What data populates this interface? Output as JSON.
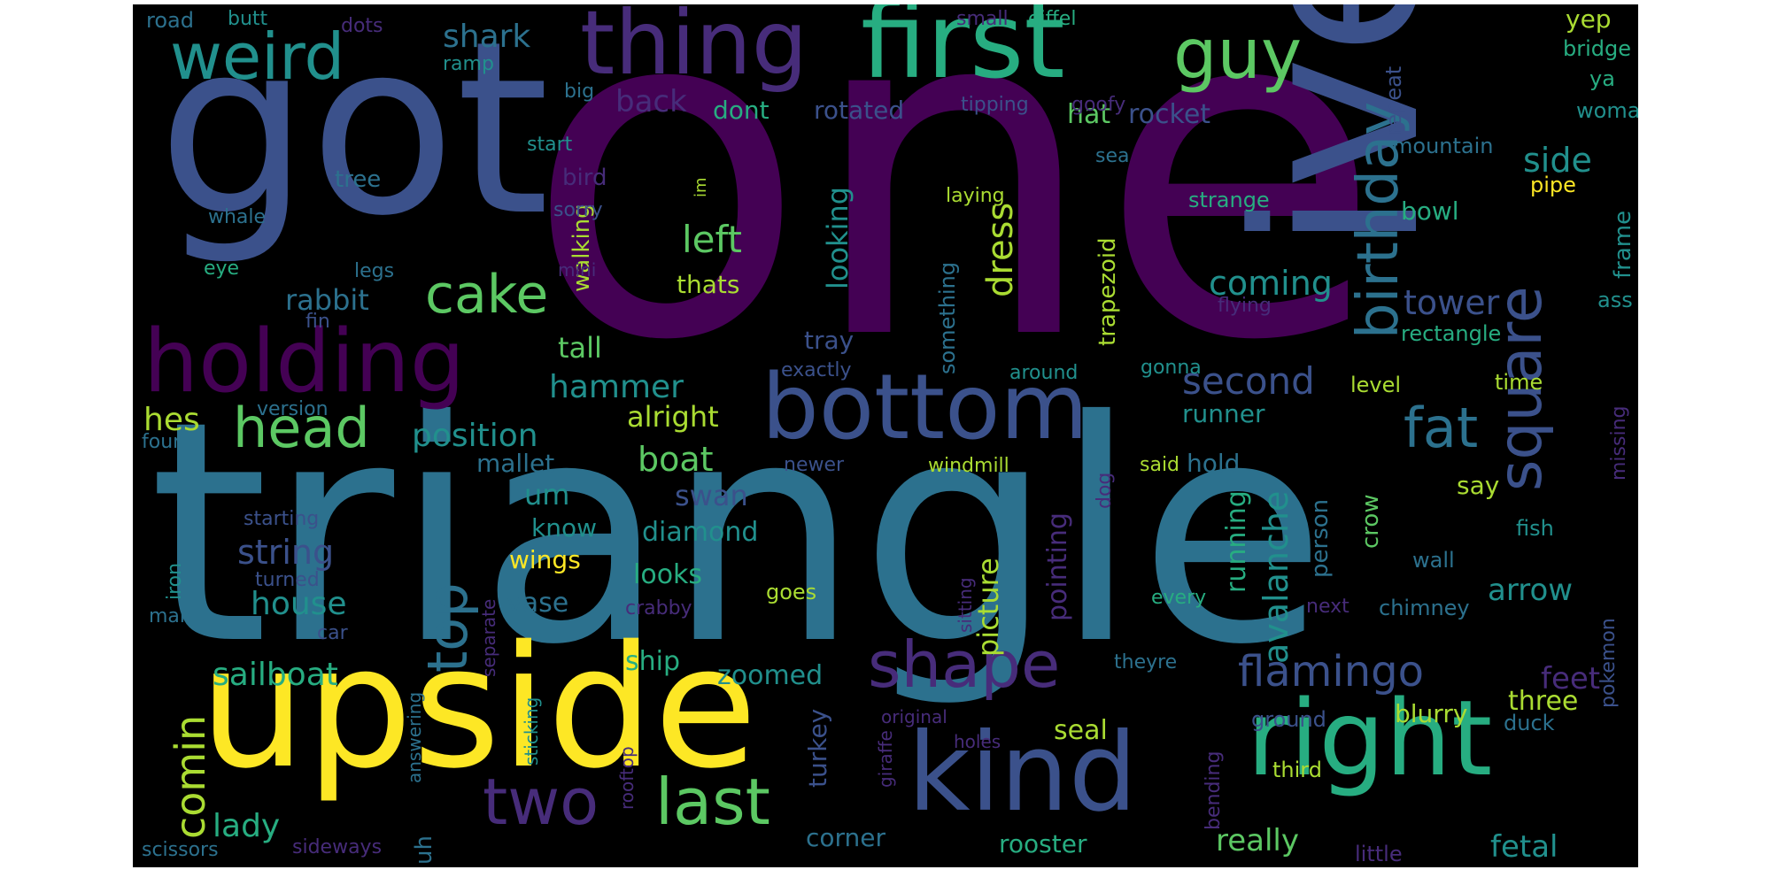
{
  "colors": {
    "background": "#000000",
    "viridis": [
      "#440154",
      "#472c7a",
      "#3b518b",
      "#2c718e",
      "#21908d",
      "#27ad81",
      "#5cc863",
      "#aadc32",
      "#fde725"
    ]
  },
  "words": [
    {
      "text": "one",
      "color": "#440154"
    },
    {
      "text": "triangle",
      "color": "#2c718e"
    },
    {
      "text": "got",
      "color": "#3b518b"
    },
    {
      "text": "ive",
      "color": "#3b518b"
    },
    {
      "text": "upside",
      "color": "#fde725"
    },
    {
      "text": "first",
      "color": "#27ad81"
    },
    {
      "text": "thing",
      "color": "#472c7a"
    },
    {
      "text": "right",
      "color": "#27ad81"
    },
    {
      "text": "kind",
      "color": "#3b518b"
    },
    {
      "text": "bottom",
      "color": "#3b518b"
    },
    {
      "text": "holding",
      "color": "#440154"
    },
    {
      "text": "weird",
      "color": "#21908d"
    },
    {
      "text": "guy",
      "color": "#5cc863"
    },
    {
      "text": "square",
      "color": "#3b518b"
    },
    {
      "text": "birthday",
      "color": "#2c718e"
    },
    {
      "text": "shape",
      "color": "#472c7a"
    },
    {
      "text": "head",
      "color": "#5cc863"
    },
    {
      "text": "cake",
      "color": "#5cc863"
    },
    {
      "text": "top",
      "color": "#2c718e"
    },
    {
      "text": "two",
      "color": "#472c7a"
    },
    {
      "text": "last",
      "color": "#5cc863"
    },
    {
      "text": "fat",
      "color": "#2c718e"
    },
    {
      "text": "comin",
      "color": "#aadc32"
    },
    {
      "text": "flamingo",
      "color": "#3b518b"
    },
    {
      "text": "avalanche",
      "color": "#21908d"
    },
    {
      "text": "dress",
      "color": "#aadc32"
    },
    {
      "text": "second",
      "color": "#3b518b"
    },
    {
      "text": "left",
      "color": "#5cc863"
    },
    {
      "text": "coming",
      "color": "#21908d"
    },
    {
      "text": "tower",
      "color": "#3b518b"
    },
    {
      "text": "side",
      "color": "#21908d"
    },
    {
      "text": "sailboat",
      "color": "#27ad81"
    },
    {
      "text": "hammer",
      "color": "#21908d"
    },
    {
      "text": "position",
      "color": "#21908d"
    },
    {
      "text": "rabbit",
      "color": "#2c718e"
    },
    {
      "text": "shark",
      "color": "#2c718e"
    },
    {
      "text": "back",
      "color": "#472c7a"
    },
    {
      "text": "boat",
      "color": "#5cc863"
    },
    {
      "text": "string",
      "color": "#3b518b"
    },
    {
      "text": "house",
      "color": "#21908d"
    },
    {
      "text": "hes",
      "color": "#aadc32"
    },
    {
      "text": "lady",
      "color": "#27ad81"
    },
    {
      "text": "looking",
      "color": "#21908d"
    },
    {
      "text": "arrow",
      "color": "#21908d"
    },
    {
      "text": "fetal",
      "color": "#21908d"
    },
    {
      "text": "really",
      "color": "#5cc863"
    },
    {
      "text": "feet",
      "color": "#472c7a"
    },
    {
      "text": "zoomed",
      "color": "#21908d"
    },
    {
      "text": "pointing",
      "color": "#472c7a"
    },
    {
      "text": "running",
      "color": "#27ad81"
    },
    {
      "text": "picture",
      "color": "#aadc32"
    },
    {
      "text": "swan",
      "color": "#3b518b"
    },
    {
      "text": "diamond",
      "color": "#21908d"
    },
    {
      "text": "tall",
      "color": "#5cc863"
    },
    {
      "text": "hat",
      "color": "#5cc863"
    },
    {
      "text": "rocket",
      "color": "#3b518b"
    },
    {
      "text": "yep",
      "color": "#aadc32"
    },
    {
      "text": "bridge",
      "color": "#27ad81"
    },
    {
      "text": "ya",
      "color": "#27ad81"
    },
    {
      "text": "woman",
      "color": "#21908d"
    },
    {
      "text": "mountain",
      "color": "#2c718e"
    },
    {
      "text": "repeat",
      "color": "#3b518b"
    },
    {
      "text": "pipe",
      "color": "#fde725"
    },
    {
      "text": "frame",
      "color": "#21908d"
    },
    {
      "text": "ass",
      "color": "#21908d"
    },
    {
      "text": "rectangle",
      "color": "#27ad81"
    },
    {
      "text": "time",
      "color": "#aadc32"
    },
    {
      "text": "level",
      "color": "#aadc32"
    },
    {
      "text": "missing",
      "color": "#472c7a"
    },
    {
      "text": "fish",
      "color": "#21908d"
    },
    {
      "text": "wall",
      "color": "#2c718e"
    },
    {
      "text": "chimney",
      "color": "#2c718e"
    },
    {
      "text": "pokemon",
      "color": "#3b518b"
    },
    {
      "text": "duck",
      "color": "#2c718e"
    },
    {
      "text": "little",
      "color": "#472c7a"
    },
    {
      "text": "three",
      "color": "#aadc32"
    },
    {
      "text": "blurry",
      "color": "#aadc32"
    },
    {
      "text": "ground",
      "color": "#3b518b"
    },
    {
      "text": "third",
      "color": "#aadc32"
    },
    {
      "text": "bending",
      "color": "#472c7a"
    },
    {
      "text": "say",
      "color": "#aadc32"
    },
    {
      "text": "crow",
      "color": "#5cc863"
    },
    {
      "text": "person",
      "color": "#2c718e"
    },
    {
      "text": "hold",
      "color": "#2c718e"
    },
    {
      "text": "said",
      "color": "#aadc32"
    },
    {
      "text": "dog",
      "color": "#472c7a"
    },
    {
      "text": "windmill",
      "color": "#aadc32"
    },
    {
      "text": "runner",
      "color": "#21908d"
    },
    {
      "text": "gonna",
      "color": "#21908d"
    },
    {
      "text": "around",
      "color": "#21908d"
    },
    {
      "text": "exactly",
      "color": "#3b518b"
    },
    {
      "text": "something",
      "color": "#2c718e"
    },
    {
      "text": "trapezoid",
      "color": "#aadc32"
    },
    {
      "text": "flying",
      "color": "#472c7a"
    },
    {
      "text": "laying",
      "color": "#aadc32"
    },
    {
      "text": "strange",
      "color": "#27ad81"
    },
    {
      "text": "sea",
      "color": "#2c718e"
    },
    {
      "text": "bowl",
      "color": "#27ad81"
    },
    {
      "text": "tipping",
      "color": "#3b518b"
    },
    {
      "text": "goofy",
      "color": "#472c7a"
    },
    {
      "text": "small",
      "color": "#472c7a"
    },
    {
      "text": "eiffel",
      "color": "#27ad81"
    },
    {
      "text": "rotated",
      "color": "#3b518b"
    },
    {
      "text": "dont",
      "color": "#27ad81"
    },
    {
      "text": "tray",
      "color": "#3b518b"
    },
    {
      "text": "walking",
      "color": "#aadc32"
    },
    {
      "text": "thats",
      "color": "#aadc32"
    },
    {
      "text": "im",
      "color": "#aadc32"
    },
    {
      "text": "road",
      "color": "#2c718e"
    },
    {
      "text": "butt",
      "color": "#21908d"
    },
    {
      "text": "dots",
      "color": "#472c7a"
    },
    {
      "text": "ramp",
      "color": "#21908d"
    },
    {
      "text": "big",
      "color": "#2c718e"
    },
    {
      "text": "start",
      "color": "#21908d"
    },
    {
      "text": "tree",
      "color": "#2c718e"
    },
    {
      "text": "bird",
      "color": "#472c7a"
    },
    {
      "text": "sorry",
      "color": "#3b518b"
    },
    {
      "text": "whale",
      "color": "#2c718e"
    },
    {
      "text": "eye",
      "color": "#27ad81"
    },
    {
      "text": "mini",
      "color": "#472c7a"
    },
    {
      "text": "legs",
      "color": "#2c718e"
    },
    {
      "text": "fin",
      "color": "#3b518b"
    },
    {
      "text": "version",
      "color": "#2c718e"
    },
    {
      "text": "four",
      "color": "#2c718e"
    },
    {
      "text": "alright",
      "color": "#aadc32"
    },
    {
      "text": "mallet",
      "color": "#2c718e"
    },
    {
      "text": "newer",
      "color": "#3b518b"
    },
    {
      "text": "um",
      "color": "#21908d"
    },
    {
      "text": "know",
      "color": "#21908d"
    },
    {
      "text": "wings",
      "color": "#fde725"
    },
    {
      "text": "starting",
      "color": "#3b518b"
    },
    {
      "text": "iron",
      "color": "#21908d"
    },
    {
      "text": "turned",
      "color": "#3b518b"
    },
    {
      "text": "man",
      "color": "#2c718e"
    },
    {
      "text": "car",
      "color": "#3b518b"
    },
    {
      "text": "separate",
      "color": "#472c7a"
    },
    {
      "text": "looks",
      "color": "#27ad81"
    },
    {
      "text": "vase",
      "color": "#2c718e"
    },
    {
      "text": "crabby",
      "color": "#472c7a"
    },
    {
      "text": "goes",
      "color": "#aadc32"
    },
    {
      "text": "uh",
      "color": "#2c718e"
    },
    {
      "text": "ship",
      "color": "#27ad81"
    },
    {
      "text": "sitting",
      "color": "#472c7a"
    },
    {
      "text": "sticking",
      "color": "#21908d"
    },
    {
      "text": "answering",
      "color": "#2c718e"
    },
    {
      "text": "rooftop",
      "color": "#472c7a"
    },
    {
      "text": "scissors",
      "color": "#2c718e"
    },
    {
      "text": "sideways",
      "color": "#472c7a"
    },
    {
      "text": "turkey",
      "color": "#3b518b"
    },
    {
      "text": "corner",
      "color": "#2c718e"
    },
    {
      "text": "giraffe",
      "color": "#472c7a"
    },
    {
      "text": "original",
      "color": "#472c7a"
    },
    {
      "text": "holes",
      "color": "#472c7a"
    },
    {
      "text": "seal",
      "color": "#aadc32"
    },
    {
      "text": "rooster",
      "color": "#27ad81"
    },
    {
      "text": "theyre",
      "color": "#2c718e"
    },
    {
      "text": "every",
      "color": "#27ad81"
    },
    {
      "text": "next",
      "color": "#472c7a"
    }
  ]
}
